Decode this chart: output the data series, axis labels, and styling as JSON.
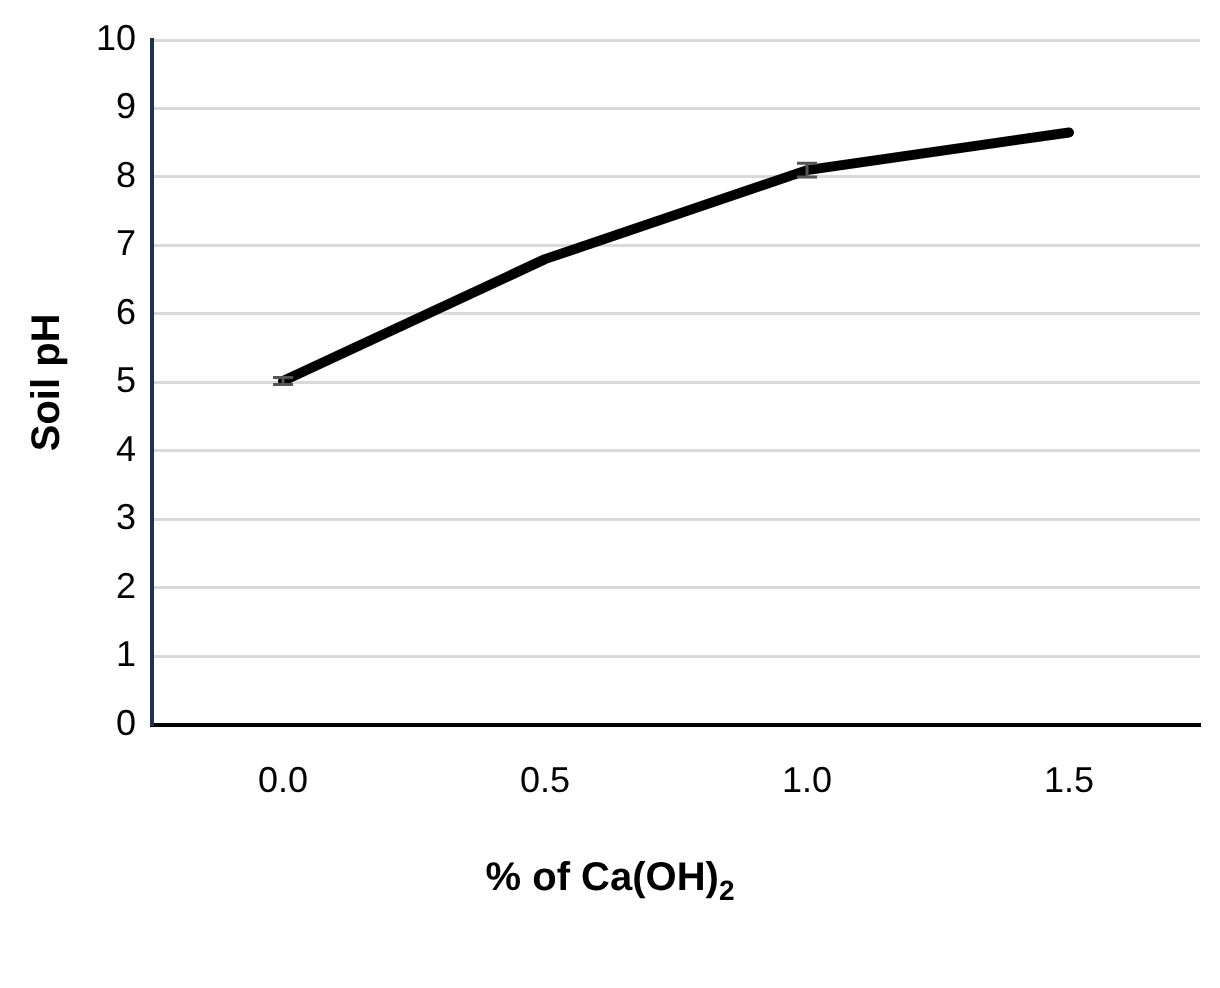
{
  "chart_data": {
    "type": "line",
    "xlabel": "% of Ca(OH)$_{2}$",
    "ylabel": "Soil pH",
    "categories": [
      "0.0",
      "0.5",
      "1.0",
      "1.5"
    ],
    "series": [
      {
        "color": "#000000",
        "values": [
          5.02,
          6.8,
          8.1,
          8.65
        ],
        "errors": [
          0.05,
          null,
          0.1,
          null
        ]
      }
    ],
    "ylim": [
      0,
      10
    ],
    "yticks": [
      0,
      1,
      2,
      3,
      4,
      5,
      6,
      7,
      8,
      9,
      10
    ],
    "grid": "y",
    "marker": "none",
    "line_style": "solid"
  }
}
